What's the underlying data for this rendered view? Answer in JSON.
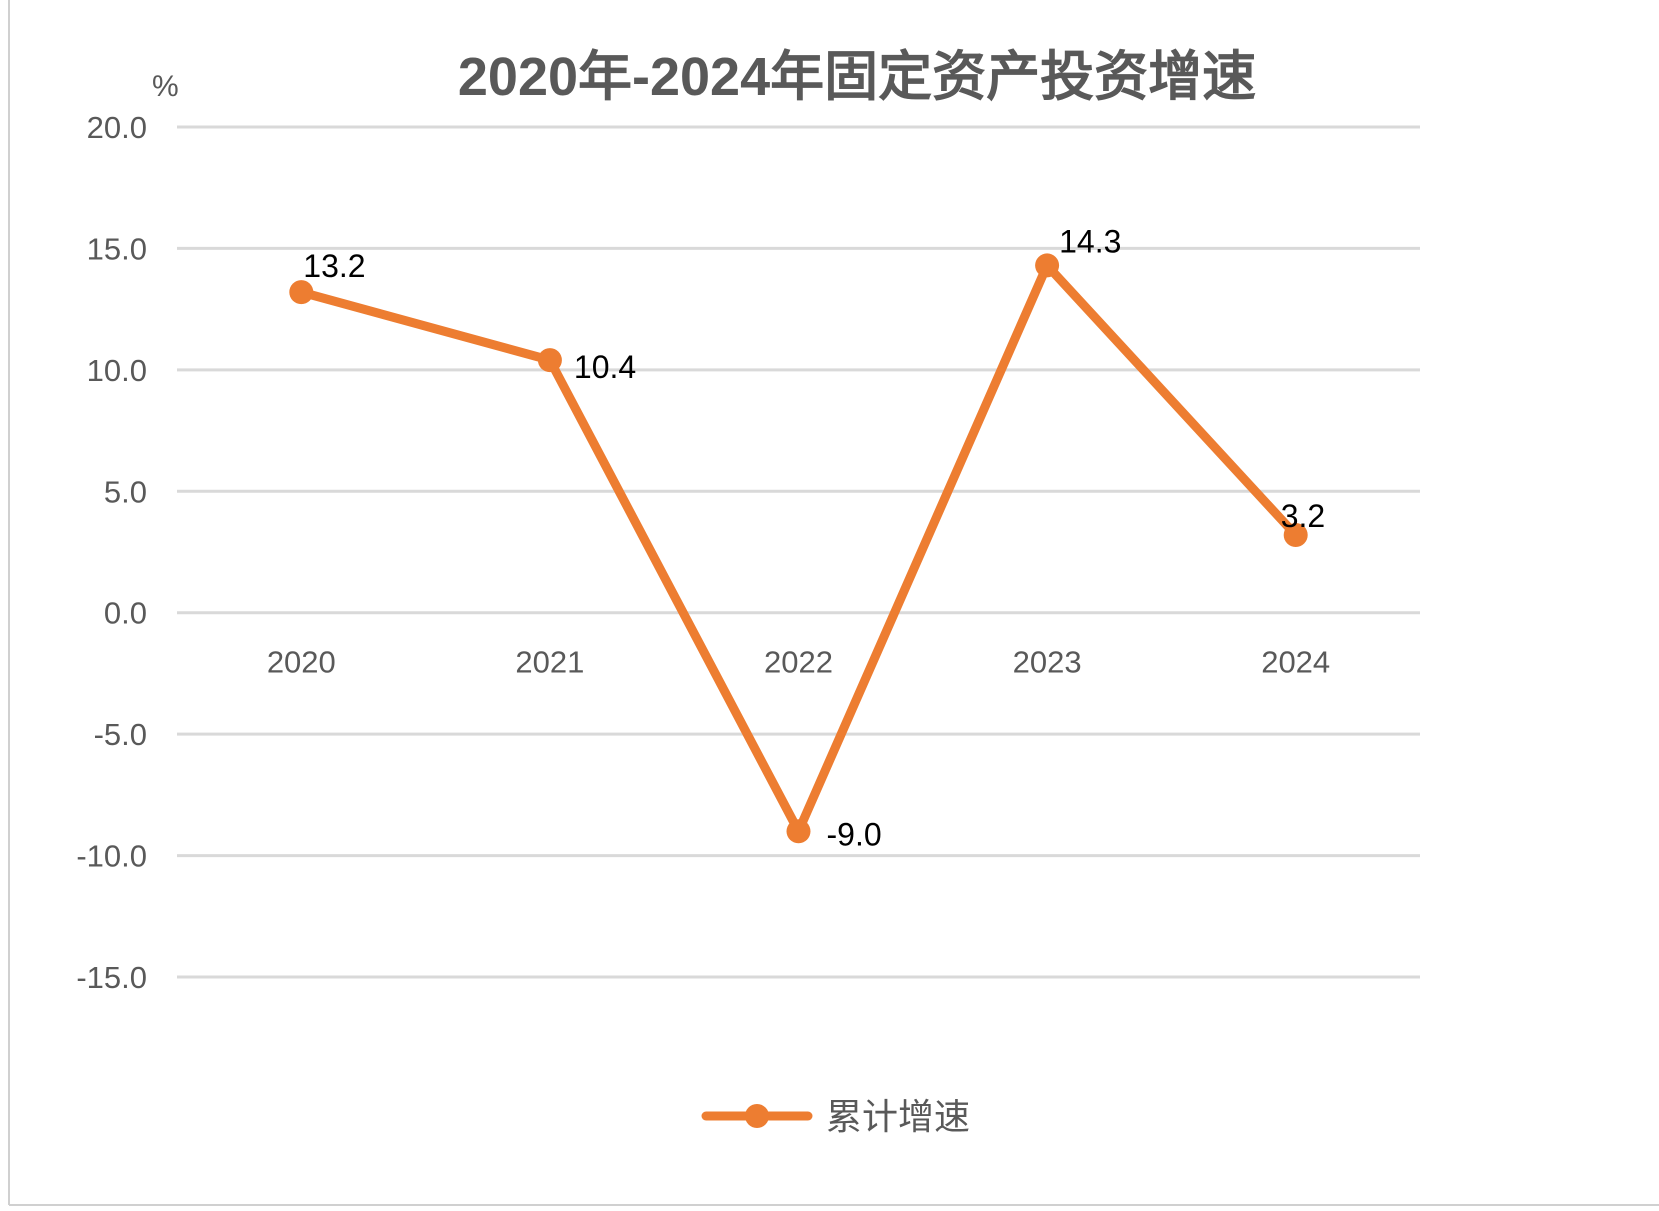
{
  "chart_data": {
    "type": "line",
    "title": "2020年-2024年固定资产投资增速",
    "y_unit": "%",
    "categories": [
      "2020",
      "2021",
      "2022",
      "2023",
      "2024"
    ],
    "series": [
      {
        "name": "累计增速",
        "values": [
          13.2,
          10.4,
          -9.0,
          14.3,
          3.2
        ]
      }
    ],
    "ylim": [
      -15,
      20
    ],
    "y_tick_labels": [
      "20.0",
      "15.0",
      "10.0",
      "5.0",
      "0.0",
      "-5.0",
      "-10.0",
      "-15.0"
    ],
    "y_ticks": [
      20,
      15,
      10,
      5,
      0,
      -5,
      -10,
      -15
    ],
    "grid": true,
    "legend": "bottom",
    "colors": {
      "line": "#ED7D31",
      "grid": "#D9D9D9",
      "text": "#595959",
      "negative": "#FF0000",
      "data_label": "#000000"
    }
  }
}
